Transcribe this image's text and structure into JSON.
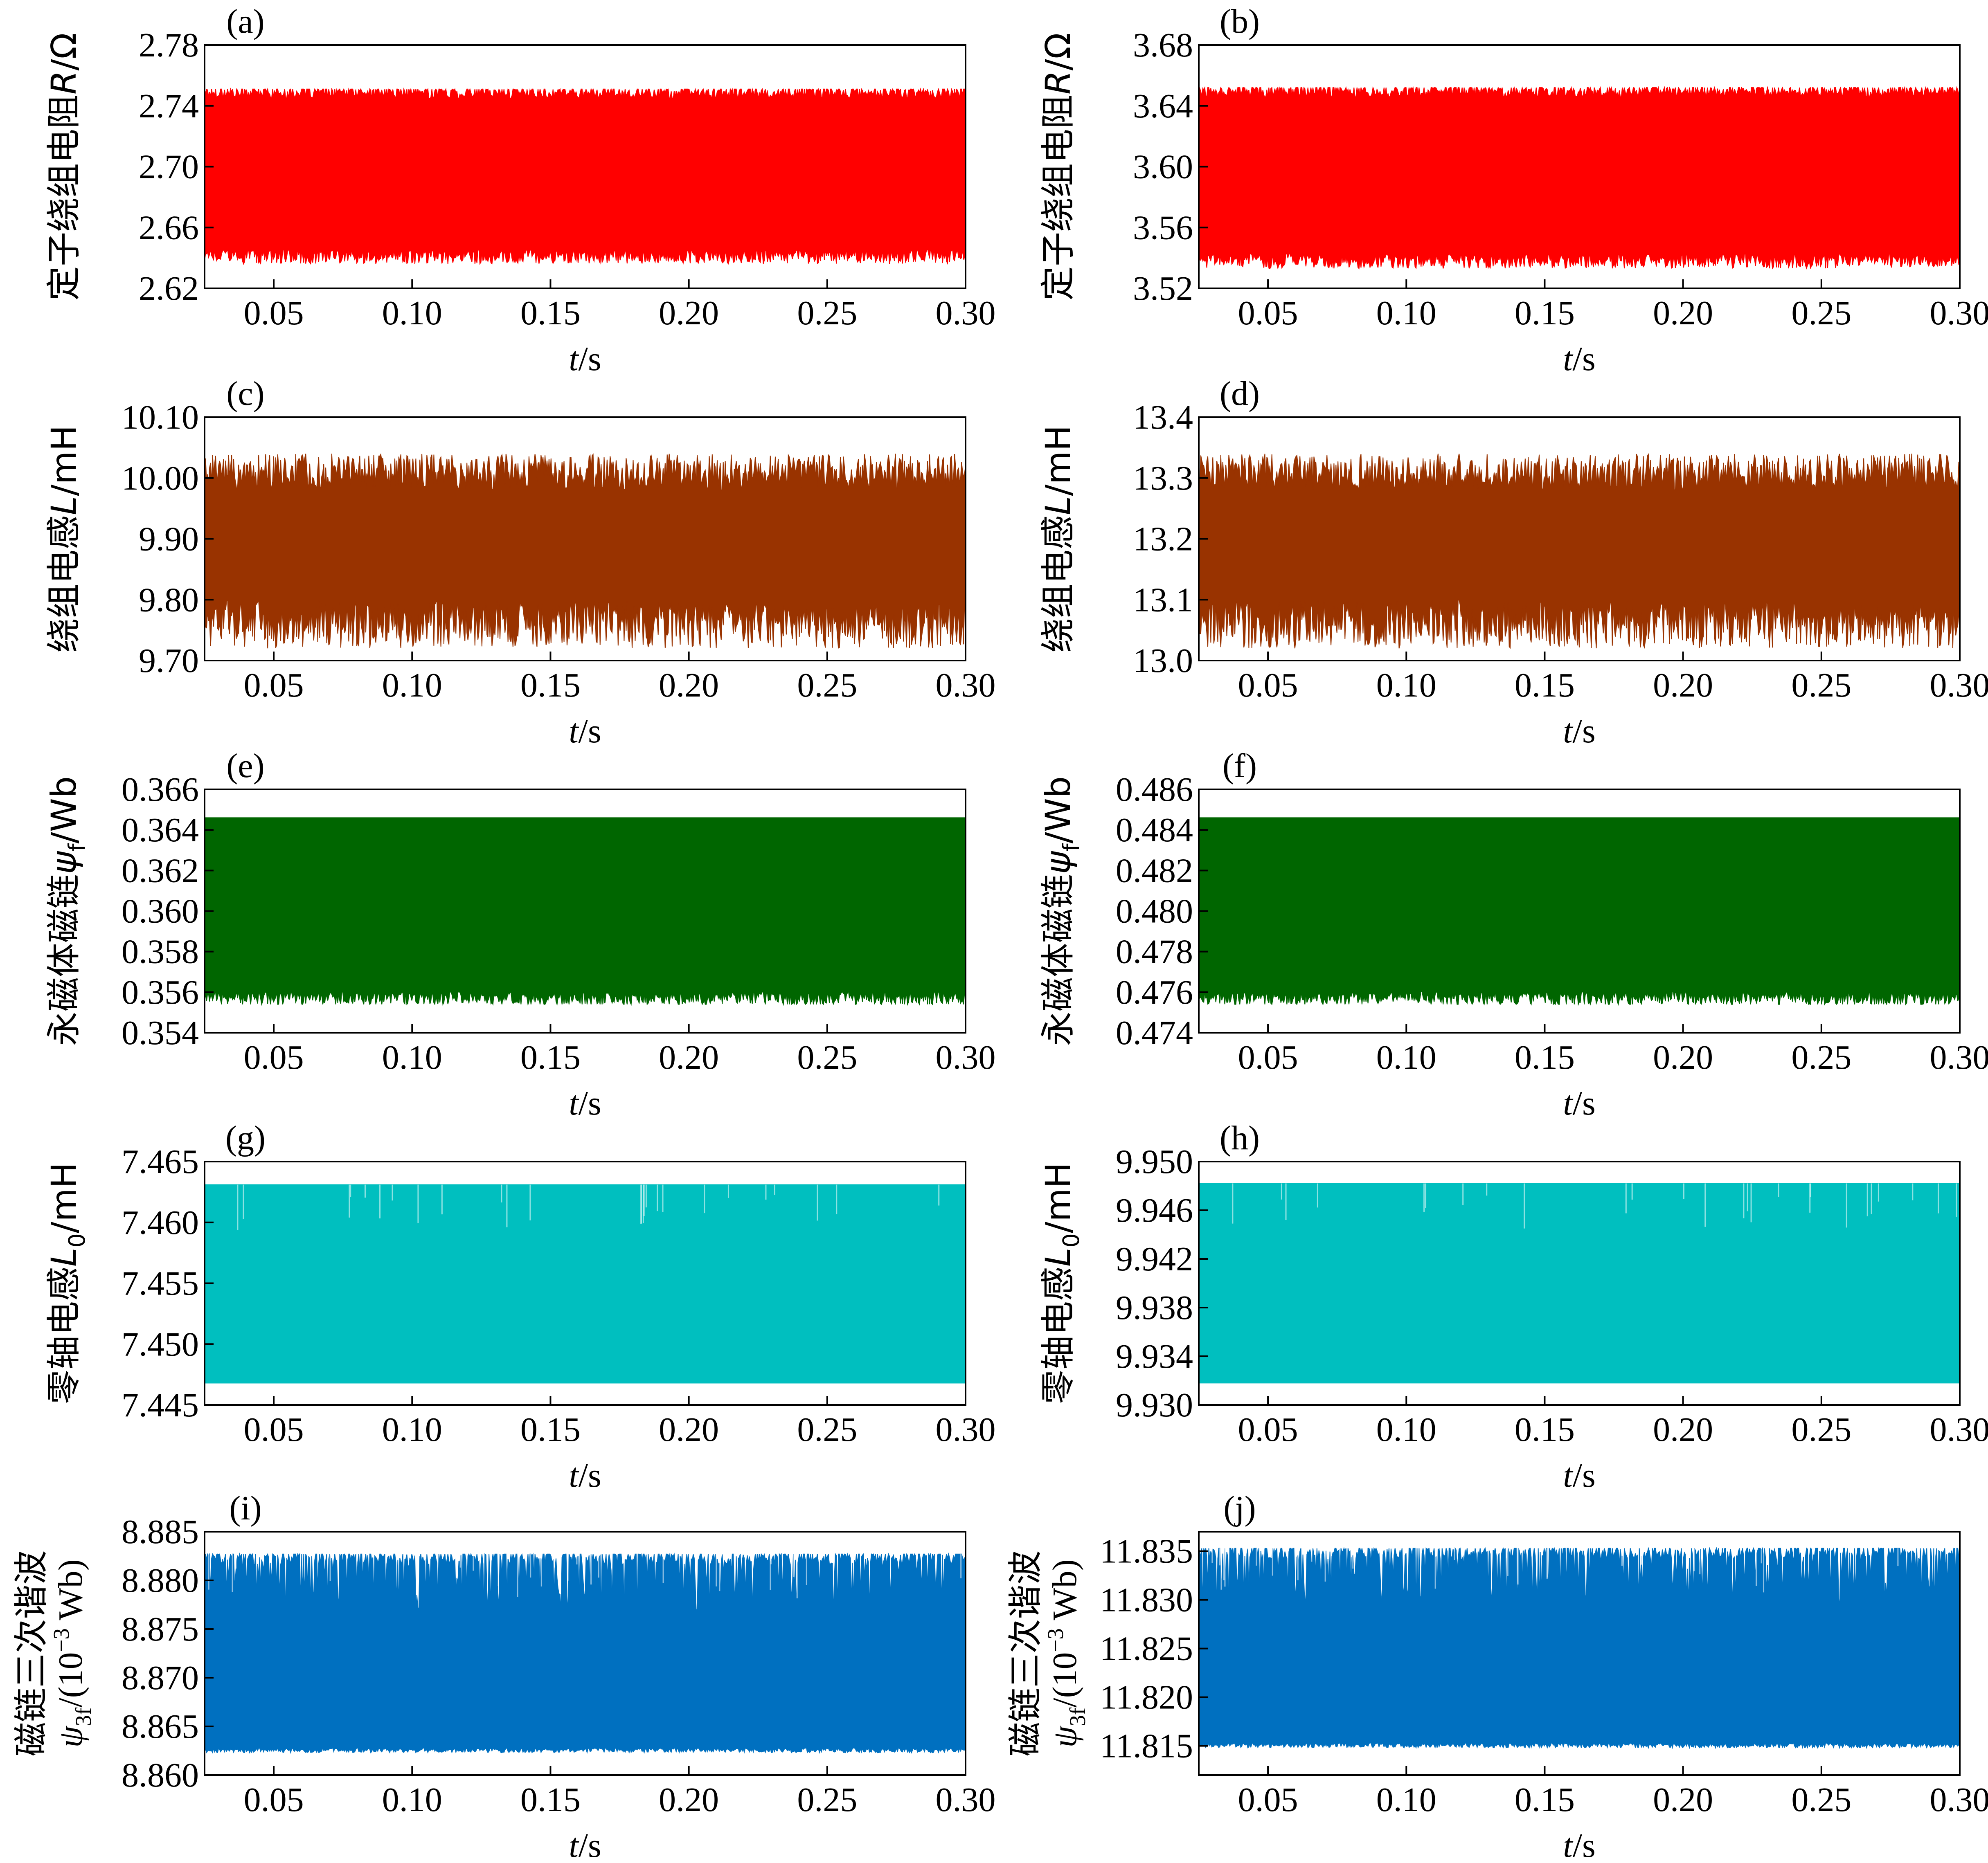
{
  "chart_data": [
    {
      "panel": "(a)",
      "type": "area",
      "ylabel_parts": [
        {
          "t": "定子绕组电阻"
        },
        {
          "t": "R",
          "i": true
        },
        {
          "t": "/Ω"
        }
      ],
      "ylim": [
        2.62,
        2.78
      ],
      "yticks": [
        "2.62",
        "2.66",
        "2.70",
        "2.74",
        "2.78"
      ],
      "xlim": [
        0.025,
        0.3
      ],
      "xticks": [
        "0.05",
        "0.10",
        "0.15",
        "0.20",
        "0.25",
        "0.30"
      ],
      "xlabel_parts": [
        {
          "t": "t",
          "i": true
        },
        {
          "t": "/s"
        }
      ],
      "series": [
        {
          "color": "#ff0000",
          "band_min": 2.636,
          "band_max": 2.751,
          "typical_min": 2.641,
          "typical_max": 2.749,
          "noise": "both"
        }
      ]
    },
    {
      "panel": "(b)",
      "type": "area",
      "ylabel_parts": [
        {
          "t": "定子绕组电阻"
        },
        {
          "t": "R",
          "i": true
        },
        {
          "t": "/Ω"
        }
      ],
      "ylim": [
        3.52,
        3.68
      ],
      "yticks": [
        "3.52",
        "3.56",
        "3.60",
        "3.64",
        "3.68"
      ],
      "xlim": [
        0.025,
        0.3
      ],
      "xticks": [
        "0.05",
        "0.10",
        "0.15",
        "0.20",
        "0.25",
        "0.30"
      ],
      "xlabel_parts": [
        {
          "t": "t",
          "i": true
        },
        {
          "t": "/s"
        }
      ],
      "series": [
        {
          "color": "#ff0000",
          "band_min": 3.533,
          "band_max": 3.652,
          "typical_min": 3.538,
          "typical_max": 3.65,
          "noise": "both"
        }
      ]
    },
    {
      "panel": "(c)",
      "type": "area",
      "ylabel_parts": [
        {
          "t": "绕组电感"
        },
        {
          "t": "L",
          "i": true
        },
        {
          "t": "/mH"
        }
      ],
      "ylim": [
        9.7,
        10.1
      ],
      "yticks": [
        "9.70",
        "9.80",
        "9.90",
        "10.00",
        "10.10"
      ],
      "xlim": [
        0.025,
        0.3
      ],
      "xticks": [
        "0.05",
        "0.10",
        "0.15",
        "0.20",
        "0.25",
        "0.30"
      ],
      "xlabel_parts": [
        {
          "t": "t",
          "i": true
        },
        {
          "t": "/s"
        }
      ],
      "series": [
        {
          "color": "#993300",
          "band_min": 9.72,
          "band_max": 10.04,
          "typical_min": 9.76,
          "typical_max": 10.01,
          "noise": "both"
        }
      ]
    },
    {
      "panel": "(d)",
      "type": "area",
      "ylabel_parts": [
        {
          "t": "绕组电感"
        },
        {
          "t": "L",
          "i": true
        },
        {
          "t": "/mH"
        }
      ],
      "ylim": [
        13.0,
        13.4
      ],
      "yticks": [
        "13.0",
        "13.1",
        "13.2",
        "13.3",
        "13.4"
      ],
      "xlim": [
        0.025,
        0.3
      ],
      "xticks": [
        "0.05",
        "0.10",
        "0.15",
        "0.20",
        "0.25",
        "0.30"
      ],
      "xlabel_parts": [
        {
          "t": "t",
          "i": true
        },
        {
          "t": "/s"
        }
      ],
      "series": [
        {
          "color": "#993300",
          "band_min": 13.02,
          "band_max": 13.34,
          "typical_min": 13.06,
          "typical_max": 13.31,
          "noise": "both"
        }
      ]
    },
    {
      "panel": "(e)",
      "type": "area",
      "ylabel_parts": [
        {
          "t": "永磁体磁链"
        },
        {
          "t": "ψ",
          "i": true
        },
        {
          "t": "f",
          "sub": true
        },
        {
          "t": "/Wb"
        }
      ],
      "ylim": [
        0.354,
        0.366
      ],
      "yticks": [
        "0.354",
        "0.356",
        "0.358",
        "0.360",
        "0.362",
        "0.364",
        "0.366"
      ],
      "xlim": [
        0.025,
        0.3
      ],
      "xticks": [
        "0.05",
        "0.10",
        "0.15",
        "0.20",
        "0.25",
        "0.30"
      ],
      "xlabel_parts": [
        {
          "t": "t",
          "i": true
        },
        {
          "t": "/s"
        }
      ],
      "series": [
        {
          "color": "#006600",
          "band_min": 0.3554,
          "band_max": 0.3646,
          "typical_min": 0.3557,
          "typical_max": 0.3646,
          "noise": "bottom"
        }
      ]
    },
    {
      "panel": "(f)",
      "type": "area",
      "ylabel_parts": [
        {
          "t": "永磁体磁链"
        },
        {
          "t": "ψ",
          "i": true
        },
        {
          "t": "f",
          "sub": true
        },
        {
          "t": "/Wb"
        }
      ],
      "ylim": [
        0.474,
        0.486
      ],
      "yticks": [
        "0.474",
        "0.476",
        "0.478",
        "0.480",
        "0.482",
        "0.484",
        "0.486"
      ],
      "xlim": [
        0.025,
        0.3
      ],
      "xticks": [
        "0.05",
        "0.10",
        "0.15",
        "0.20",
        "0.25",
        "0.30"
      ],
      "xlabel_parts": [
        {
          "t": "t",
          "i": true
        },
        {
          "t": "/s"
        }
      ],
      "series": [
        {
          "color": "#006600",
          "band_min": 0.4754,
          "band_max": 0.4846,
          "typical_min": 0.4757,
          "typical_max": 0.4846,
          "noise": "bottom"
        }
      ]
    },
    {
      "panel": "(g)",
      "type": "area",
      "ylabel_parts": [
        {
          "t": "零轴电感"
        },
        {
          "t": "L",
          "i": true
        },
        {
          "t": "0",
          "sub": true
        },
        {
          "t": "/mH"
        }
      ],
      "ylim": [
        7.445,
        7.465
      ],
      "yticks": [
        "7.445",
        "7.450",
        "7.455",
        "7.460",
        "7.465"
      ],
      "xlim": [
        0.025,
        0.3
      ],
      "xticks": [
        "0.05",
        "0.10",
        "0.15",
        "0.20",
        "0.25",
        "0.30"
      ],
      "xlabel_parts": [
        {
          "t": "t",
          "i": true
        },
        {
          "t": "/s"
        }
      ],
      "series": [
        {
          "color": "#00bfbf",
          "band_min": 7.4468,
          "band_max": 7.4631,
          "typical_min": 7.4468,
          "typical_max": 7.4631,
          "noise": "none"
        }
      ]
    },
    {
      "panel": "(h)",
      "type": "area",
      "ylabel_parts": [
        {
          "t": "零轴电感"
        },
        {
          "t": "L",
          "i": true
        },
        {
          "t": "0",
          "sub": true
        },
        {
          "t": "/mH"
        }
      ],
      "ylim": [
        9.93,
        9.95
      ],
      "yticks": [
        "9.930",
        "9.934",
        "9.938",
        "9.942",
        "9.946",
        "9.950"
      ],
      "xlim": [
        0.025,
        0.3
      ],
      "xticks": [
        "0.05",
        "0.10",
        "0.15",
        "0.20",
        "0.25",
        "0.30"
      ],
      "xlabel_parts": [
        {
          "t": "t",
          "i": true
        },
        {
          "t": "/s"
        }
      ],
      "series": [
        {
          "color": "#00bfbf",
          "band_min": 9.9318,
          "band_max": 9.9482,
          "typical_min": 9.9318,
          "typical_max": 9.9482,
          "noise": "none"
        }
      ]
    },
    {
      "panel": "(i)",
      "type": "area",
      "ylabel_line1": "磁链三次谐波",
      "ylabel_parts": [
        {
          "t": "ψ",
          "i": true
        },
        {
          "t": "3f",
          "sub": true
        },
        {
          "t": "/(10"
        },
        {
          "t": "−3",
          "sup": true
        },
        {
          "t": " Wb)"
        }
      ],
      "ylim": [
        8.86,
        8.885
      ],
      "yticks": [
        "8.860",
        "8.865",
        "8.870",
        "8.875",
        "8.880",
        "8.885"
      ],
      "xlim": [
        0.025,
        0.3
      ],
      "xticks": [
        "0.05",
        "0.10",
        "0.15",
        "0.20",
        "0.25",
        "0.30"
      ],
      "xlabel_parts": [
        {
          "t": "t",
          "i": true
        },
        {
          "t": "/s"
        }
      ],
      "series": [
        {
          "color": "#0070c0",
          "band_min": 8.8623,
          "band_max": 8.8827,
          "typical_min": 8.8625,
          "typical_max": 8.8824,
          "noise": "top"
        }
      ]
    },
    {
      "panel": "(j)",
      "type": "area",
      "ylabel_line1": "磁链三次谐波",
      "ylabel_parts": [
        {
          "t": "ψ",
          "i": true
        },
        {
          "t": "3f",
          "sub": true
        },
        {
          "t": "/(10"
        },
        {
          "t": "−3",
          "sup": true
        },
        {
          "t": " Wb)"
        }
      ],
      "ylim": [
        11.812,
        11.837
      ],
      "yticks": [
        "11.815",
        "11.820",
        "11.825",
        "11.830",
        "11.835"
      ],
      "xlim": [
        0.025,
        0.3
      ],
      "xticks": [
        "0.05",
        "0.10",
        "0.15",
        "0.20",
        "0.25",
        "0.30"
      ],
      "xlabel_parts": [
        {
          "t": "t",
          "i": true
        },
        {
          "t": "/s"
        }
      ],
      "series": [
        {
          "color": "#0070c0",
          "band_min": 11.8148,
          "band_max": 11.8353,
          "typical_min": 11.815,
          "typical_max": 11.835,
          "noise": "top"
        }
      ]
    }
  ]
}
